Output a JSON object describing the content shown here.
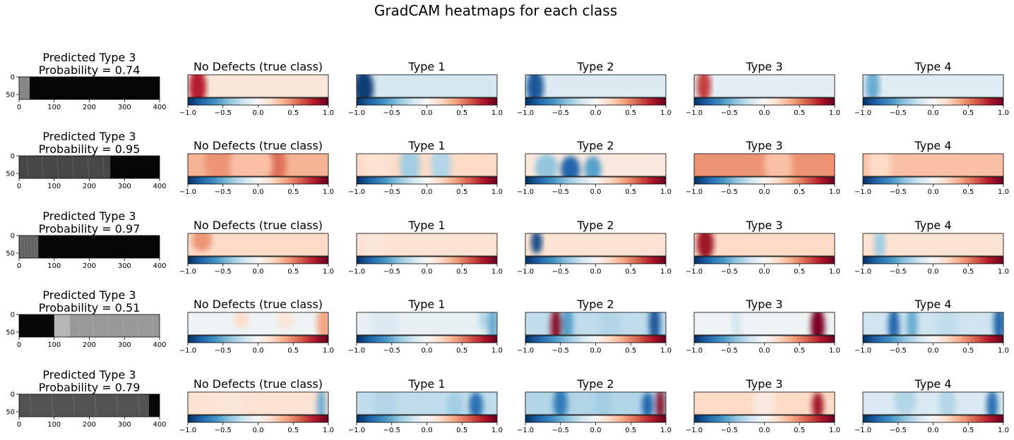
{
  "figure": {
    "title": "GradCAM heatmaps for each class"
  },
  "colors": {
    "colormap": "RdBu_r",
    "cmap_stops": [
      "#053061",
      "#2166ac",
      "#4393c3",
      "#92c5de",
      "#d1e5f0",
      "#f7f7f7",
      "#fddbc7",
      "#f4a582",
      "#d6604d",
      "#b2182b",
      "#67001f"
    ]
  },
  "colorbar": {
    "range": [
      -1.0,
      1.0
    ],
    "tick_labels": [
      "−1.0",
      "−0.5",
      "0.0",
      "0.5",
      "1.0"
    ],
    "tick_values": [
      -1.0,
      -0.5,
      0.0,
      0.5,
      1.0
    ]
  },
  "image_axes": {
    "x_range": [
      0,
      400
    ],
    "y_range": [
      0,
      64
    ],
    "x_tick_labels": [
      "0",
      "100",
      "200",
      "300",
      "400"
    ],
    "x_tick_values": [
      0,
      100,
      200,
      300,
      400
    ],
    "y_tick_labels": [
      "0",
      "50"
    ],
    "y_tick_values": [
      0,
      50
    ]
  },
  "class_titles": [
    "No Defects (true class)",
    "Type 1",
    "Type 2",
    "Type 3",
    "Type 4"
  ],
  "chart_data": {
    "type": "heatmap",
    "title": "GradCAM heatmaps for each class",
    "rows": [
      {
        "prediction_line1": "Predicted Type 3",
        "prediction_line2": "Probability = 0.74",
        "image_segments": [
          [
            0,
            30,
            0.5
          ],
          [
            30,
            400,
            0.02
          ]
        ],
        "heatmaps": [
          {
            "base": 0.12,
            "blobs": [
              [
                0.07,
                0.55,
                0.06,
                0.85,
                0.78
              ]
            ]
          },
          {
            "base": -0.18,
            "blobs": [
              [
                0.05,
                0.6,
                0.07,
                0.8,
                -0.95
              ]
            ]
          },
          {
            "base": -0.14,
            "blobs": [
              [
                0.07,
                0.55,
                0.06,
                0.8,
                -0.85
              ]
            ]
          },
          {
            "base": -0.1,
            "blobs": [
              [
                0.07,
                0.5,
                0.05,
                0.7,
                0.7
              ]
            ]
          },
          {
            "base": -0.12,
            "blobs": [
              [
                0.07,
                0.5,
                0.05,
                0.7,
                -0.5
              ]
            ]
          }
        ]
      },
      {
        "prediction_line1": "Predicted Type 3",
        "prediction_line2": "Probability = 0.95",
        "image_segments": [
          [
            0,
            260,
            0.28
          ],
          [
            260,
            400,
            0.02
          ]
        ],
        "heatmaps": [
          {
            "base": 0.35,
            "blobs": [
              [
                0.22,
                0.4,
                0.1,
                1.0,
                0.45
              ],
              [
                0.6,
                0.5,
                0.1,
                1.0,
                0.55
              ],
              [
                0.45,
                0.5,
                0.15,
                1.0,
                0.3
              ]
            ]
          },
          {
            "base": 0.2,
            "blobs": [
              [
                0.38,
                0.5,
                0.07,
                1.0,
                -0.35
              ],
              [
                0.6,
                0.5,
                0.07,
                1.0,
                -0.3
              ],
              [
                0.15,
                0.5,
                0.1,
                1.0,
                0.15
              ]
            ]
          },
          {
            "base": 0.1,
            "blobs": [
              [
                0.32,
                0.7,
                0.07,
                0.6,
                -0.8
              ],
              [
                0.15,
                0.6,
                0.08,
                0.6,
                -0.4
              ],
              [
                0.48,
                0.7,
                0.06,
                0.6,
                -0.55
              ]
            ]
          },
          {
            "base": 0.45,
            "blobs": [
              [
                0.35,
                0.6,
                0.1,
                0.9,
                0.45
              ],
              [
                0.6,
                0.5,
                0.1,
                1.0,
                0.3
              ]
            ]
          },
          {
            "base": 0.3,
            "blobs": [
              [
                0.4,
                0.5,
                0.1,
                1.0,
                0.3
              ],
              [
                0.12,
                0.5,
                0.08,
                1.0,
                0.2
              ]
            ]
          }
        ]
      },
      {
        "prediction_line1": "Predicted Type 3",
        "prediction_line2": "Probability = 0.97",
        "image_segments": [
          [
            0,
            55,
            0.38
          ],
          [
            55,
            400,
            0.02
          ]
        ],
        "heatmaps": [
          {
            "base": 0.2,
            "blobs": [
              [
                0.1,
                0.3,
                0.07,
                0.5,
                0.45
              ]
            ]
          },
          {
            "base": 0.15,
            "blobs": [
              [
                0.12,
                0.5,
                0.06,
                0.7,
                0.12
              ]
            ]
          },
          {
            "base": 0.15,
            "blobs": [
              [
                0.08,
                0.4,
                0.04,
                0.5,
                -0.9
              ]
            ]
          },
          {
            "base": 0.2,
            "blobs": [
              [
                0.08,
                0.45,
                0.06,
                0.7,
                0.85
              ]
            ]
          },
          {
            "base": 0.15,
            "blobs": [
              [
                0.12,
                0.5,
                0.04,
                0.7,
                -0.35
              ]
            ]
          }
        ]
      },
      {
        "prediction_line1": "Predicted Type 3",
        "prediction_line2": "Probability = 0.51",
        "image_segments": [
          [
            0,
            100,
            0.03
          ],
          [
            100,
            145,
            0.7
          ],
          [
            145,
            400,
            0.6
          ]
        ],
        "heatmaps": [
          {
            "base": -0.05,
            "blobs": [
              [
                0.38,
                0.3,
                0.05,
                0.4,
                0.2
              ],
              [
                0.97,
                0.5,
                0.05,
                0.8,
                0.4
              ],
              [
                0.7,
                0.3,
                0.06,
                0.5,
                0.12
              ]
            ]
          },
          {
            "base": -0.08,
            "blobs": [
              [
                0.97,
                0.5,
                0.04,
                0.8,
                -0.5
              ],
              [
                0.2,
                0.5,
                0.1,
                0.8,
                -0.15
              ],
              [
                0.9,
                0.3,
                0.03,
                0.5,
                -0.3
              ]
            ]
          },
          {
            "base": -0.25,
            "blobs": [
              [
                0.22,
                0.6,
                0.04,
                0.8,
                0.9
              ],
              [
                0.92,
                0.5,
                0.04,
                0.9,
                -0.85
              ],
              [
                0.3,
                0.5,
                0.04,
                0.8,
                -0.55
              ],
              [
                0.6,
                0.5,
                0.08,
                0.8,
                -0.3
              ]
            ]
          },
          {
            "base": -0.05,
            "blobs": [
              [
                0.88,
                0.6,
                0.05,
                0.8,
                0.95
              ],
              [
                0.3,
                0.5,
                0.03,
                0.8,
                -0.2
              ]
            ]
          },
          {
            "base": -0.2,
            "blobs": [
              [
                0.22,
                0.6,
                0.04,
                0.8,
                -0.8
              ],
              [
                0.97,
                0.5,
                0.04,
                0.8,
                -0.8
              ],
              [
                0.35,
                0.5,
                0.04,
                0.8,
                -0.5
              ],
              [
                0.6,
                0.5,
                0.08,
                0.8,
                -0.25
              ]
            ]
          }
        ]
      },
      {
        "prediction_line1": "Predicted Type 3",
        "prediction_line2": "Probability = 0.79",
        "image_segments": [
          [
            0,
            370,
            0.32
          ],
          [
            370,
            400,
            0.03
          ]
        ],
        "heatmaps": [
          {
            "base": 0.15,
            "blobs": [
              [
                0.95,
                0.6,
                0.03,
                0.8,
                -0.5
              ],
              [
                0.3,
                0.5,
                0.1,
                0.8,
                0.12
              ]
            ]
          },
          {
            "base": -0.25,
            "blobs": [
              [
                0.85,
                0.6,
                0.05,
                0.6,
                -0.75
              ],
              [
                0.2,
                0.5,
                0.08,
                0.8,
                -0.3
              ],
              [
                0.7,
                0.6,
                0.06,
                0.6,
                -0.35
              ]
            ]
          },
          {
            "base": -0.3,
            "blobs": [
              [
                0.96,
                0.6,
                0.03,
                0.8,
                0.9
              ],
              [
                0.87,
                0.6,
                0.04,
                0.6,
                -0.8
              ],
              [
                0.25,
                0.5,
                0.05,
                0.7,
                -0.7
              ],
              [
                0.55,
                0.5,
                0.06,
                0.8,
                -0.35
              ]
            ]
          },
          {
            "base": 0.2,
            "blobs": [
              [
                0.88,
                0.6,
                0.04,
                0.6,
                0.85
              ],
              [
                0.5,
                0.5,
                0.08,
                0.8,
                0.1
              ]
            ]
          },
          {
            "base": -0.15,
            "blobs": [
              [
                0.92,
                0.6,
                0.04,
                0.7,
                -0.75
              ],
              [
                0.3,
                0.4,
                0.08,
                0.6,
                -0.3
              ],
              [
                0.6,
                0.5,
                0.06,
                0.7,
                -0.3
              ]
            ]
          }
        ]
      }
    ]
  }
}
